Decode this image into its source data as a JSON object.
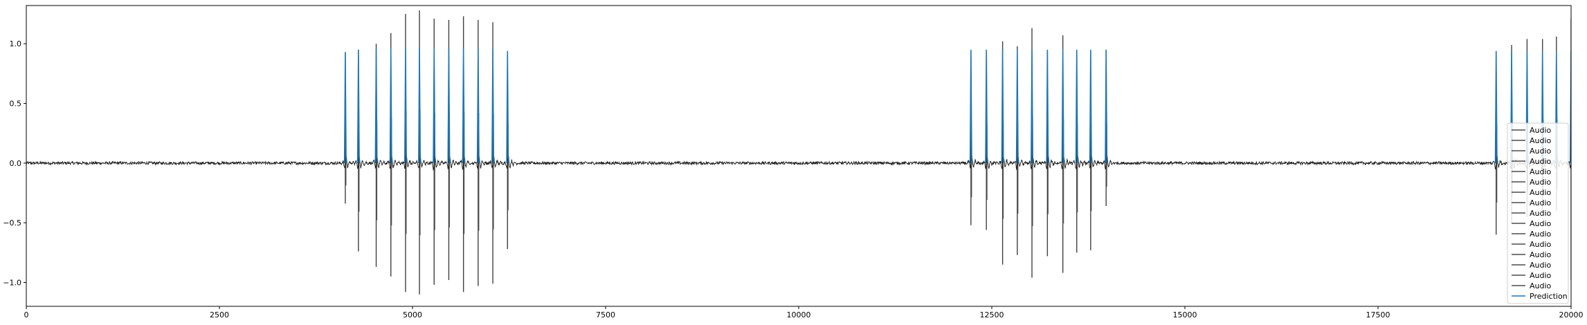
{
  "chart_data": {
    "type": "line",
    "title": "",
    "xlabel": "",
    "ylabel": "",
    "xlim": [
      0,
      20000
    ],
    "ylim": [
      -1.2,
      1.32
    ],
    "grid": false,
    "legend_position": "lower-right",
    "x_ticks": [
      {
        "value": 0,
        "label": "0"
      },
      {
        "value": 2500,
        "label": "2500"
      },
      {
        "value": 5000,
        "label": "5000"
      },
      {
        "value": 7500,
        "label": "7500"
      },
      {
        "value": 10000,
        "label": "10000"
      },
      {
        "value": 12500,
        "label": "12500"
      },
      {
        "value": 15000,
        "label": "15000"
      },
      {
        "value": 17500,
        "label": "17500"
      },
      {
        "value": 20000,
        "label": "20000"
      }
    ],
    "y_ticks": [
      {
        "value": 1.0,
        "label": "1.0"
      },
      {
        "value": 0.5,
        "label": "0.5"
      },
      {
        "value": 0.0,
        "label": "0.0"
      },
      {
        "value": -0.5,
        "label": "−0.5"
      },
      {
        "value": -1.0,
        "label": "−1.0"
      }
    ],
    "colors": {
      "audio": "#000000",
      "prediction": "#1f77b4"
    },
    "audio_noise_amplitude": 0.012,
    "legend": [
      "Audio",
      "Audio",
      "Audio",
      "Audio",
      "Audio",
      "Audio",
      "Audio",
      "Audio",
      "Audio",
      "Audio",
      "Audio",
      "Audio",
      "Audio",
      "Audio",
      "Audio",
      "Audio",
      "Prediction"
    ],
    "series": [
      {
        "name": "Audio",
        "kind": "spikes",
        "x": [
          4130,
          4300,
          4530,
          4720,
          4910,
          5090,
          5280,
          5470,
          5660,
          5850,
          6040,
          6230,
          12230,
          12430,
          12640,
          12830,
          13020,
          13220,
          13420,
          13600,
          13780,
          13980,
          19030,
          19230,
          19430,
          19630,
          19810,
          20000
        ],
        "peak_max": [
          0.93,
          0.95,
          1.0,
          1.09,
          1.25,
          1.28,
          1.21,
          1.2,
          1.23,
          1.2,
          1.18,
          0.93,
          0.93,
          0.93,
          1.02,
          0.98,
          1.13,
          0.94,
          1.07,
          0.94,
          0.93,
          0.95,
          0.93,
          0.99,
          1.04,
          1.04,
          1.06,
          1.21
        ],
        "peak_min": [
          -0.34,
          -0.74,
          -0.87,
          -0.95,
          -1.08,
          -1.1,
          -1.02,
          -0.98,
          -1.08,
          -1.03,
          -1.01,
          -0.72,
          -0.52,
          -0.56,
          -0.85,
          -0.77,
          -0.96,
          -0.78,
          -0.92,
          -0.75,
          -0.73,
          -0.36,
          -0.6,
          -0.5,
          -0.45,
          -0.42,
          -0.4,
          -0.98
        ]
      },
      {
        "name": "Prediction",
        "kind": "spikes",
        "x": [
          4130,
          4300,
          4530,
          4720,
          4910,
          5090,
          5280,
          5470,
          5660,
          5850,
          6040,
          6230,
          12230,
          12430,
          12640,
          12830,
          13020,
          13220,
          13420,
          13600,
          13780,
          13980,
          19030,
          19230,
          19430,
          19630,
          19810,
          20000
        ],
        "peak_max": [
          0.93,
          0.95,
          0.96,
          0.96,
          0.96,
          0.96,
          0.96,
          0.96,
          0.96,
          0.96,
          0.96,
          0.94,
          0.95,
          0.95,
          0.95,
          0.95,
          0.95,
          0.95,
          0.95,
          0.95,
          0.95,
          0.95,
          0.94,
          0.94,
          0.94,
          0.94,
          0.94,
          0.94
        ]
      }
    ]
  }
}
